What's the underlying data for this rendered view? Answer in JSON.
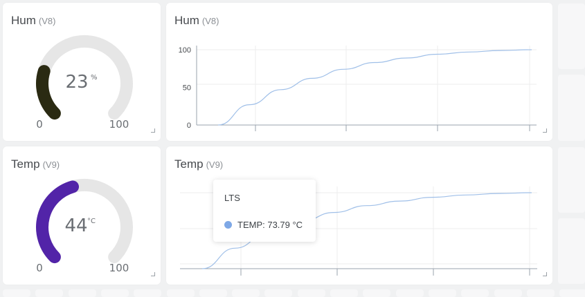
{
  "widgets": {
    "hum_gauge": {
      "title": "Hum",
      "pin": "(V8)",
      "value": "23",
      "value_num": 23,
      "unit": "%",
      "min": "0",
      "max": "100",
      "min_num": 0,
      "max_num": 100,
      "color": "#2a2a12"
    },
    "hum_chart": {
      "title": "Hum",
      "pin": "(V8)"
    },
    "temp_gauge": {
      "title": "Temp",
      "pin": "(V9)",
      "value": "44",
      "value_num": 44,
      "unit": "°C",
      "min": "0",
      "max": "100",
      "min_num": 0,
      "max_num": 100,
      "color": "#5224a8"
    },
    "temp_chart": {
      "title": "Temp",
      "pin": "(V9)",
      "tooltip": {
        "title": "LTS",
        "label": "TEMP: 73.79 °C",
        "color": "#7ea8e6"
      }
    }
  },
  "colors": {
    "background": "#f0f1f2",
    "card": "#ffffff",
    "gauge_track": "#e6e6e6",
    "line": "#9fbfe8",
    "grid": "#ececee",
    "axis": "#9aa3ad"
  },
  "chart_data": [
    {
      "type": "line",
      "title": "Hum",
      "xlabel": "",
      "ylabel": "",
      "yticks": [
        "100",
        "50",
        "0"
      ],
      "ylim": [
        0,
        100
      ],
      "grid": true,
      "series": [
        {
          "x": [
            0,
            0.1,
            0.2,
            0.3,
            0.4,
            0.5,
            0.6,
            0.7,
            0.8,
            0.9,
            1.0
          ],
          "values": [
            0,
            27,
            47,
            62,
            74,
            83,
            89,
            94,
            97,
            99,
            100
          ]
        }
      ]
    },
    {
      "type": "line",
      "title": "Temp",
      "xlabel": "",
      "ylabel": "",
      "yticks": [],
      "ylim": [
        0,
        100
      ],
      "grid": true,
      "series": [
        {
          "x": [
            0,
            0.1,
            0.2,
            0.3,
            0.4,
            0.5,
            0.6,
            0.7,
            0.8,
            0.9,
            1.0
          ],
          "values": [
            0,
            27,
            47,
            62,
            74,
            83,
            89,
            94,
            97,
            99,
            100
          ]
        }
      ]
    }
  ]
}
